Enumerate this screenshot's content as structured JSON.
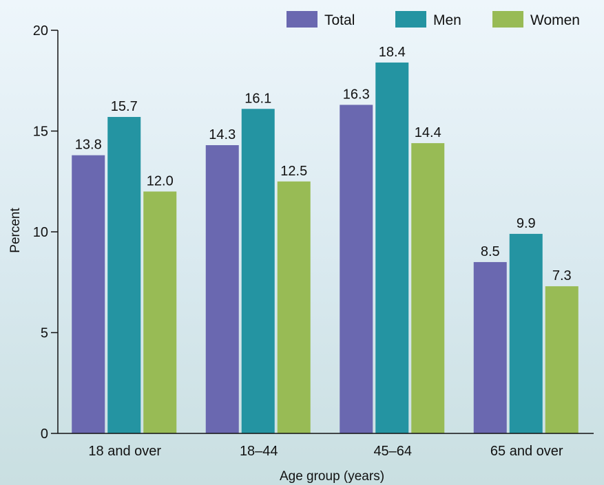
{
  "chart_data": {
    "type": "bar",
    "categories": [
      "18 and over",
      "18–44",
      "45–64",
      "65 and over"
    ],
    "series": [
      {
        "name": "Total",
        "color": "#6a68b0",
        "values": [
          13.8,
          14.3,
          16.3,
          8.5
        ],
        "labels": [
          "13.8",
          "14.3",
          "16.3",
          "8.5"
        ]
      },
      {
        "name": "Men",
        "color": "#2494a2",
        "values": [
          15.7,
          16.1,
          18.4,
          9.9
        ],
        "labels": [
          "15.7",
          "16.1",
          "18.4",
          "9.9"
        ]
      },
      {
        "name": "Women",
        "color": "#98bb55",
        "values": [
          12.0,
          12.5,
          14.4,
          7.3
        ],
        "labels": [
          "12.0",
          "12.5",
          "14.4",
          "7.3"
        ]
      }
    ],
    "xlabel": "Age group (years)",
    "ylabel": "Percent",
    "ylim": [
      0,
      20
    ],
    "yticks": [
      0,
      5,
      10,
      15,
      20
    ],
    "grid": false,
    "legend_position": "top-right"
  }
}
